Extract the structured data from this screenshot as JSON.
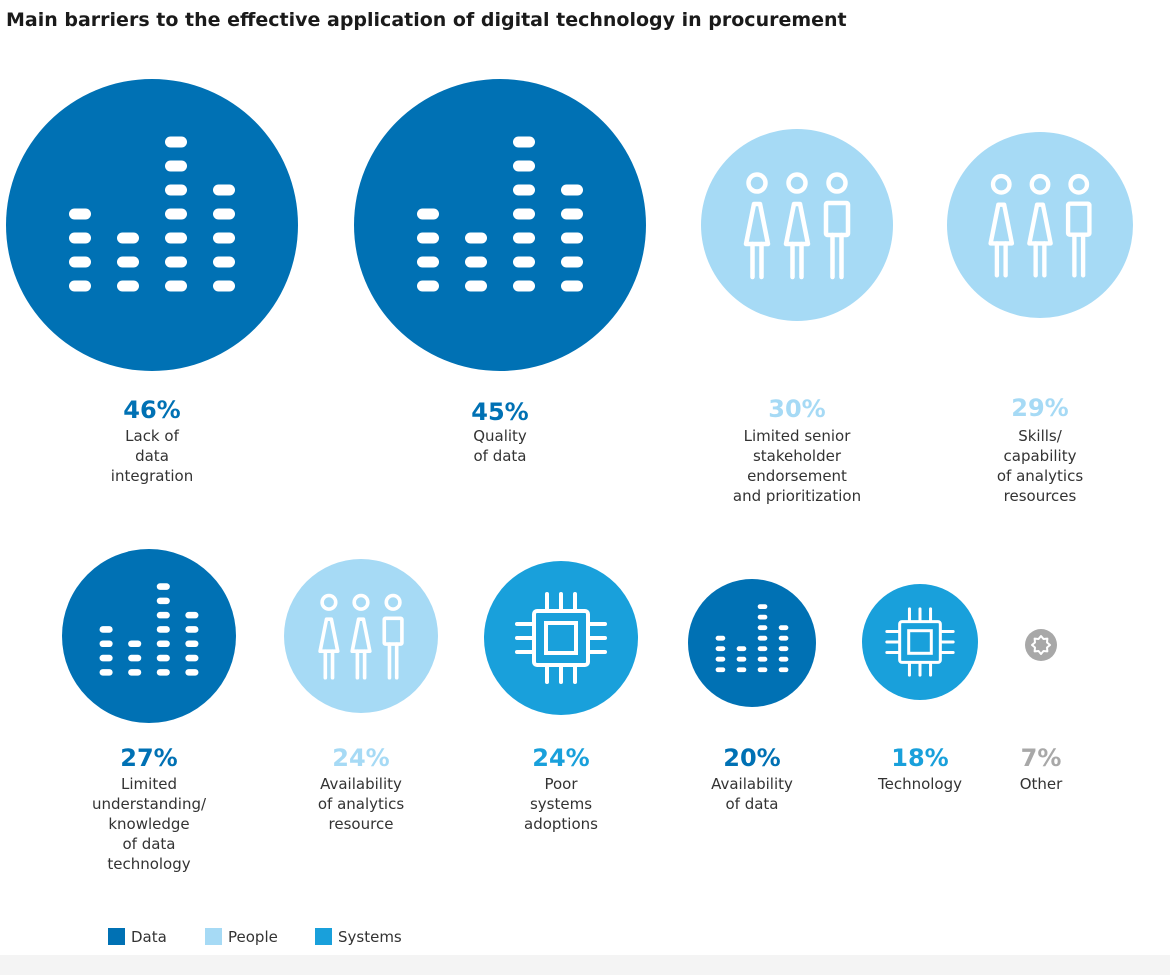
{
  "title": "Main barriers to the effective application of digital technology in procurement",
  "colors": {
    "Data": "#0071b4",
    "People": "#a6daf5",
    "Systems": "#19a0db",
    "Other": "#a8a8a8"
  },
  "chart_data": {
    "type": "bubble",
    "title": "Main barriers to the effective application of digital technology in procurement",
    "legend": [
      "Data",
      "People",
      "Systems"
    ],
    "legend_position": "bottom-left",
    "items": [
      {
        "value": 46,
        "label": "46%",
        "category": "Data",
        "icon": "bar-dots-icon",
        "text": [
          "Lack of",
          "data",
          "integration"
        ]
      },
      {
        "value": 45,
        "label": "45%",
        "category": "Data",
        "icon": "bar-dots-icon",
        "text": [
          "Quality",
          "of data"
        ]
      },
      {
        "value": 30,
        "label": "30%",
        "category": "People",
        "icon": "people-icon",
        "text": [
          "Limited senior",
          "stakeholder",
          "endorsement",
          "and prioritization"
        ]
      },
      {
        "value": 29,
        "label": "29%",
        "category": "People",
        "icon": "people-icon",
        "text": [
          "Skills/",
          "capability",
          "of analytics",
          "resources"
        ]
      },
      {
        "value": 27,
        "label": "27%",
        "category": "Data",
        "icon": "bar-dots-icon",
        "text": [
          "Limited",
          "understanding/",
          "knowledge",
          "of data",
          "technology"
        ]
      },
      {
        "value": 24,
        "label": "24%",
        "category": "People",
        "icon": "people-icon",
        "text": [
          "Availability",
          "of analytics",
          "resource"
        ]
      },
      {
        "value": 24,
        "label": "24%",
        "category": "Systems",
        "icon": "chip-icon",
        "text": [
          "Poor",
          "systems",
          "adoptions"
        ]
      },
      {
        "value": 20,
        "label": "20%",
        "category": "Data",
        "icon": "bar-dots-icon",
        "text": [
          "Availability",
          "of data"
        ]
      },
      {
        "value": 18,
        "label": "18%",
        "category": "Systems",
        "icon": "chip-icon",
        "text": [
          "Technology"
        ]
      },
      {
        "value": 7,
        "label": "7%",
        "category": "Other",
        "icon": "gear-icon",
        "text": [
          "Other"
        ]
      }
    ]
  }
}
